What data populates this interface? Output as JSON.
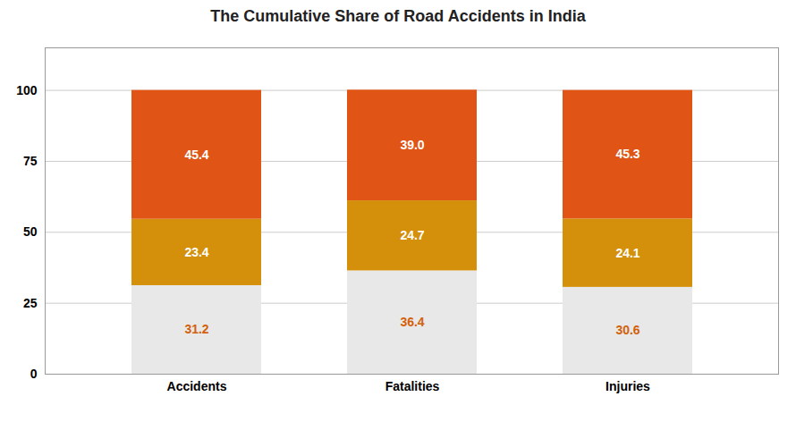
{
  "chart_data": {
    "type": "bar",
    "title": "The Cumulative Share of Road Accidents in India",
    "categories": [
      "Accidents",
      "Fatalities",
      "Injuries"
    ],
    "stacked": true,
    "series": [
      {
        "color": "#e8e8e8",
        "values": [
          31.2,
          36.4,
          30.6
        ]
      },
      {
        "color": "#d4900a",
        "values": [
          23.4,
          24.7,
          24.1
        ]
      },
      {
        "color": "#e05515",
        "values": [
          45.4,
          39.0,
          45.3
        ],
        "value_labels": [
          "45.4",
          "39.0",
          "45.3"
        ]
      }
    ],
    "ylim": [
      0,
      115
    ],
    "yticks": [
      0,
      25,
      50,
      75,
      100
    ],
    "grid": true,
    "data_labels": true
  }
}
